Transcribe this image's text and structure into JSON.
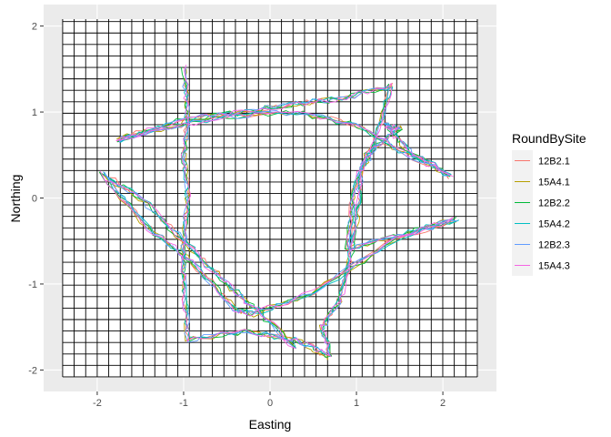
{
  "chart_data": {
    "type": "line",
    "xlabel": "Easting",
    "ylabel": "Northing",
    "xlim": [
      -2.62,
      2.62
    ],
    "ylim": [
      -2.25,
      2.25
    ],
    "x_ticks": [
      -2,
      -1,
      0,
      1,
      2
    ],
    "y_ticks": [
      -2,
      -1,
      0,
      1,
      2
    ],
    "panel_background": "#ebebeb",
    "grid": {
      "x_range": [
        -2.4,
        2.4
      ],
      "y_range": [
        -2.08,
        2.08
      ],
      "step": 0.1333,
      "line_color": "#000000",
      "fill": "#ffffff"
    },
    "legend": {
      "title": "RoundBySite",
      "position": "right",
      "entries": [
        "12B2.1",
        "15A4.1",
        "12B2.2",
        "15A4.2",
        "12B2.3",
        "15A4.3"
      ]
    },
    "colors": [
      "#F8766D",
      "#B79F00",
      "#00BA38",
      "#00BFC4",
      "#619CFF",
      "#F564E3"
    ],
    "track_waypoints": [
      [
        -1.0,
        1.52
      ],
      [
        -0.95,
        1.0
      ],
      [
        -1.0,
        0.5
      ],
      [
        -0.95,
        0.0
      ],
      [
        -1.0,
        -0.5
      ],
      [
        -1.0,
        -1.0
      ],
      [
        -0.95,
        -1.65
      ],
      [
        -0.3,
        -1.55
      ],
      [
        0.3,
        -1.65
      ],
      [
        0.7,
        -1.85
      ],
      [
        0.6,
        -1.5
      ],
      [
        0.8,
        -1.2
      ],
      [
        0.9,
        -0.8
      ],
      [
        1.0,
        -0.3
      ],
      [
        1.05,
        0.3
      ],
      [
        1.2,
        0.6
      ],
      [
        1.4,
        1.3
      ],
      [
        0.8,
        1.15
      ],
      [
        0.3,
        1.1
      ],
      [
        -0.3,
        1.0
      ],
      [
        -0.95,
        0.92
      ],
      [
        -1.75,
        0.68
      ],
      [
        -1.4,
        0.78
      ],
      [
        -0.5,
        0.95
      ],
      [
        0.3,
        1.0
      ],
      [
        1.0,
        0.85
      ],
      [
        1.6,
        0.5
      ],
      [
        2.1,
        0.25
      ],
      [
        1.6,
        0.55
      ],
      [
        1.35,
        0.85
      ],
      [
        1.5,
        0.8
      ],
      [
        1.1,
        0.5
      ],
      [
        0.95,
        0.0
      ],
      [
        0.9,
        -0.6
      ],
      [
        1.6,
        -0.4
      ],
      [
        2.15,
        -0.25
      ],
      [
        1.5,
        -0.45
      ],
      [
        0.5,
        -1.1
      ],
      [
        -0.2,
        -1.35
      ],
      [
        -0.4,
        -1.3
      ],
      [
        -0.9,
        -0.75
      ],
      [
        -1.4,
        -0.35
      ],
      [
        -1.95,
        0.28
      ],
      [
        -1.5,
        0.0
      ],
      [
        -0.9,
        -0.6
      ],
      [
        -0.5,
        -1.0
      ],
      [
        -0.1,
        -1.35
      ],
      [
        0.3,
        -1.75
      ]
    ]
  }
}
